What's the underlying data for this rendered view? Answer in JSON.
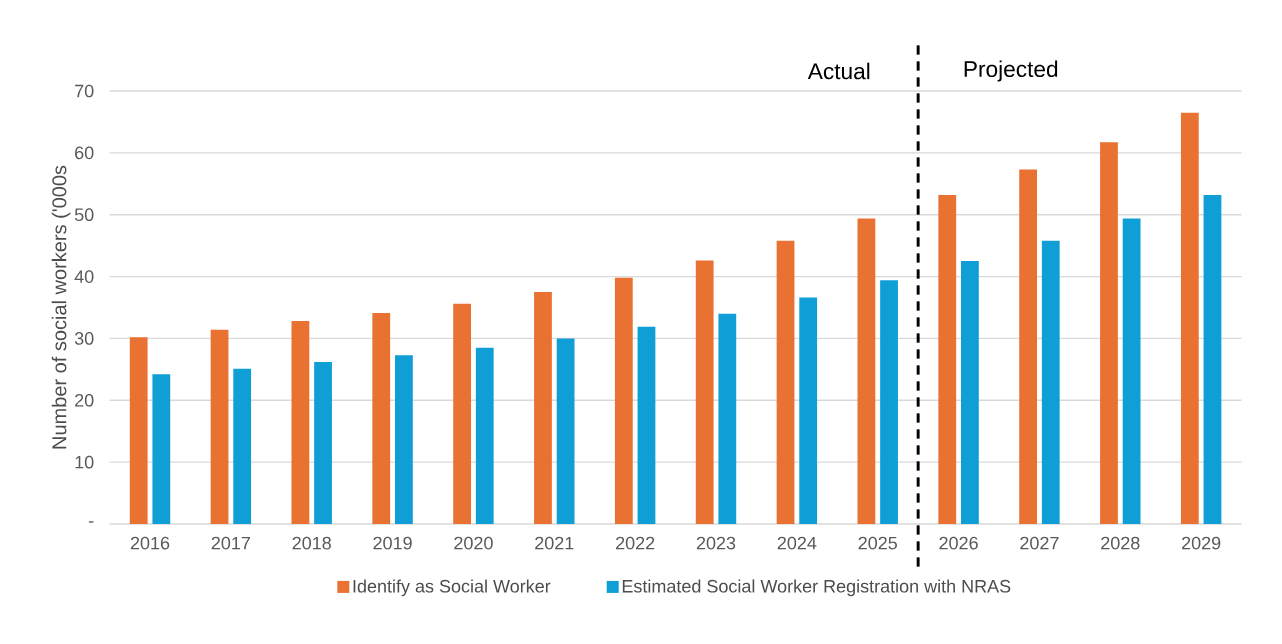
{
  "chart_data": {
    "type": "bar",
    "ylabel": "Number of social workers ('000s",
    "categories": [
      "2016",
      "2017",
      "2018",
      "2019",
      "2020",
      "2021",
      "2022",
      "2023",
      "2024",
      "2025",
      "2026",
      "2027",
      "2028",
      "2029"
    ],
    "series": [
      {
        "name": "Identify as Social Worker",
        "color": "#e97132",
        "values": [
          30.2,
          31.4,
          32.8,
          34.1,
          35.6,
          37.5,
          39.8,
          42.6,
          45.8,
          49.4,
          53.2,
          57.3,
          61.7,
          66.5
        ]
      },
      {
        "name": "Estimated Social Worker Registration with NRAS",
        "color": "#0f9ed5",
        "values": [
          24.2,
          25.1,
          26.2,
          27.3,
          28.5,
          30.0,
          31.9,
          34.0,
          36.6,
          39.4,
          42.5,
          45.8,
          49.4,
          53.2
        ]
      }
    ],
    "ylim": [
      0,
      70
    ],
    "yticks": [
      {
        "value": 0,
        "label": "-"
      },
      10,
      20,
      30,
      40,
      50,
      60,
      70
    ],
    "grid": "y",
    "legend": "bottom",
    "annotations": [
      "Actual",
      "Projected"
    ]
  }
}
